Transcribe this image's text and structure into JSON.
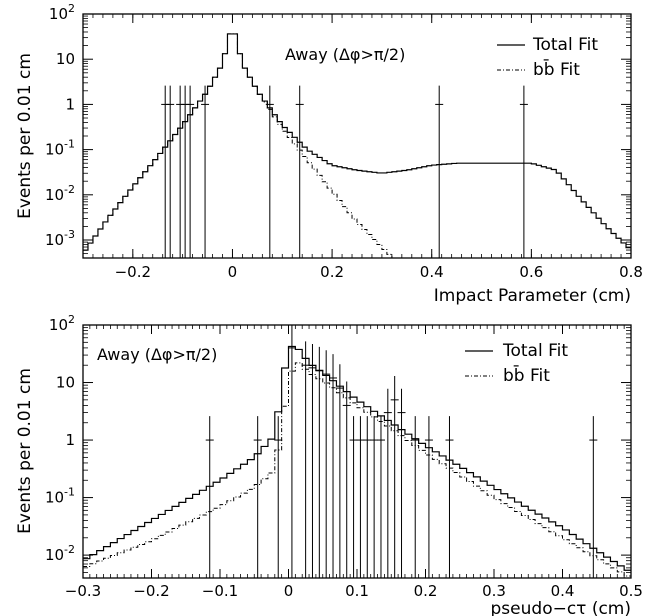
{
  "chart_data": [
    {
      "type": "line",
      "title": "",
      "xlabel": "Impact Parameter (cm)",
      "ylabel": "Events per 0.01 cm",
      "xlim": [
        -0.3,
        0.8
      ],
      "ylim": [
        0.0004,
        100
      ],
      "yscale": "log",
      "x_ticks": [
        "-0.2",
        "0",
        "0.2",
        "0.4",
        "0.6",
        "0.8"
      ],
      "y_ticks": [
        "10^-3",
        "10^-2",
        "10^-1",
        "1",
        "10",
        "10^2"
      ],
      "annotation": "Away (Δφ>π/2)",
      "legend_position": "top-right",
      "series": [
        {
          "name": "Total Fit",
          "style": "solid",
          "x": [
            -0.3,
            -0.25,
            -0.2,
            -0.15,
            -0.1,
            -0.05,
            -0.02,
            0.0,
            0.02,
            0.05,
            0.1,
            0.15,
            0.2,
            0.25,
            0.3,
            0.35,
            0.4,
            0.45,
            0.5,
            0.55,
            0.6,
            0.65,
            0.7,
            0.75,
            0.8
          ],
          "y": [
            0.0005,
            0.003,
            0.015,
            0.07,
            0.35,
            2.0,
            8,
            60,
            8,
            2.0,
            0.35,
            0.1,
            0.045,
            0.035,
            0.03,
            0.035,
            0.045,
            0.05,
            0.05,
            0.05,
            0.05,
            0.035,
            0.008,
            0.002,
            0.0006
          ]
        },
        {
          "name": "bb̄ Fit",
          "style": "dashed",
          "x": [
            -0.3,
            -0.25,
            -0.2,
            -0.15,
            -0.1,
            -0.05,
            -0.02,
            0.0,
            0.02,
            0.05,
            0.1,
            0.15,
            0.2,
            0.25,
            0.3,
            0.35
          ],
          "y": [
            0.0005,
            0.003,
            0.015,
            0.07,
            0.35,
            2.0,
            8,
            60,
            8,
            2.0,
            0.3,
            0.06,
            0.012,
            0.0025,
            0.0007,
            0.0002
          ]
        }
      ],
      "data_points": {
        "x": [
          -0.135,
          -0.125,
          -0.105,
          -0.095,
          -0.085,
          -0.055,
          0.075,
          0.135,
          0.415,
          0.585
        ],
        "y": [
          1,
          1,
          1,
          1,
          1,
          1,
          1,
          1,
          1,
          1
        ]
      }
    },
    {
      "type": "line",
      "title": "",
      "xlabel": "pseudo−cτ (cm)",
      "ylabel": "Events per 0.01 cm",
      "xlim": [
        -0.3,
        0.5
      ],
      "ylim": [
        0.004,
        100
      ],
      "yscale": "log",
      "x_ticks": [
        "-0.3",
        "-0.2",
        "-0.1",
        "0",
        "0.1",
        "0.2",
        "0.3",
        "0.4",
        "0.5"
      ],
      "y_ticks": [
        "10^-2",
        "10^-1",
        "1",
        "10",
        "10^2"
      ],
      "annotation": "Away (Δφ>π/2)",
      "legend_position": "top-right",
      "series": [
        {
          "name": "Total Fit",
          "style": "solid",
          "x": [
            -0.3,
            -0.2,
            -0.1,
            -0.05,
            -0.02,
            -0.01,
            0.0,
            0.01,
            0.03,
            0.06,
            0.1,
            0.15,
            0.2,
            0.25,
            0.3,
            0.35,
            0.4,
            0.45,
            0.5
          ],
          "y": [
            0.008,
            0.04,
            0.2,
            0.5,
            1.2,
            8,
            40,
            45,
            22,
            12,
            5,
            2,
            0.8,
            0.35,
            0.15,
            0.065,
            0.03,
            0.012,
            0.005
          ]
        },
        {
          "name": "bb̄ Fit",
          "style": "dashed",
          "x": [
            -0.3,
            -0.2,
            -0.1,
            -0.05,
            -0.02,
            -0.01,
            0.0,
            0.01,
            0.03,
            0.06,
            0.1,
            0.15,
            0.2,
            0.25,
            0.3,
            0.35,
            0.4,
            0.45,
            0.5
          ],
          "y": [
            0.006,
            0.018,
            0.07,
            0.15,
            0.3,
            1.5,
            10,
            25,
            15,
            9,
            4,
            1.6,
            0.6,
            0.25,
            0.1,
            0.045,
            0.02,
            0.009,
            0.004
          ]
        }
      ],
      "data_points": {
        "x": [
          -0.115,
          -0.045,
          -0.015,
          0.005,
          0.025,
          0.035,
          0.045,
          0.055,
          0.065,
          0.075,
          0.085,
          0.095,
          0.105,
          0.115,
          0.125,
          0.135,
          0.145,
          0.155,
          0.165,
          0.185,
          0.205,
          0.235,
          0.445
        ],
        "y": [
          1,
          1,
          1,
          40,
          20,
          18,
          16,
          14,
          12,
          8,
          4,
          1,
          1,
          1,
          1,
          1,
          3,
          5,
          3,
          1,
          1,
          1,
          1
        ]
      }
    }
  ]
}
